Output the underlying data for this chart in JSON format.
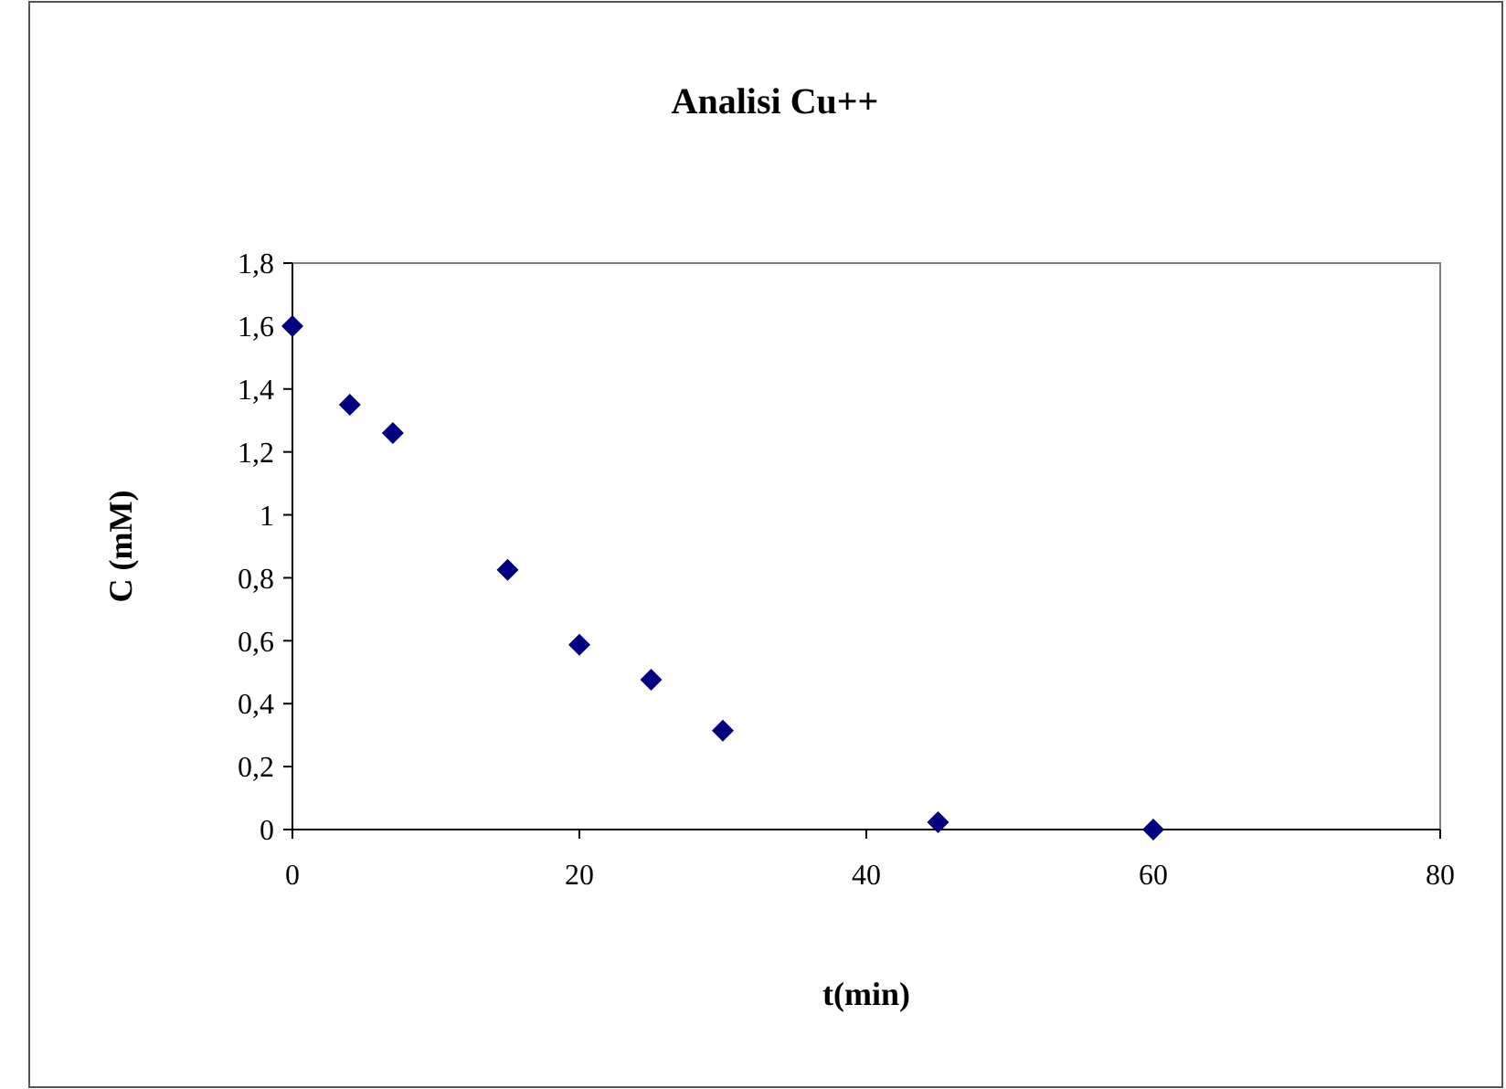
{
  "chart_data": {
    "type": "scatter",
    "title": "Analisi Cu++",
    "xlabel": "t(min)",
    "ylabel": "C (mM)",
    "x": [
      0,
      4,
      7,
      15,
      20,
      25,
      30,
      45,
      60
    ],
    "series": [
      {
        "color": "#000080",
        "values": [
          1.6,
          1.35,
          1.26,
          0.825,
          0.587,
          0.476,
          0.314,
          0.023,
          0
        ]
      }
    ],
    "xlim": [
      0,
      80
    ],
    "xticks": [
      0,
      20,
      40,
      60,
      80
    ],
    "ylim": [
      0,
      1.8
    ],
    "yticks": [
      0,
      {
        "value": 0.2,
        "label": "0,2"
      },
      {
        "value": 0.4,
        "label": "0,4"
      },
      {
        "value": 0.6,
        "label": "0,6"
      },
      {
        "value": 0.8,
        "label": "0,8"
      },
      1,
      {
        "value": 1.2,
        "label": "1,2"
      },
      {
        "value": 1.4,
        "label": "1,4"
      },
      {
        "value": 1.6,
        "label": "1,6"
      },
      {
        "value": 1.8,
        "label": "1,8"
      }
    ],
    "marker": "diamond",
    "grid": false
  }
}
